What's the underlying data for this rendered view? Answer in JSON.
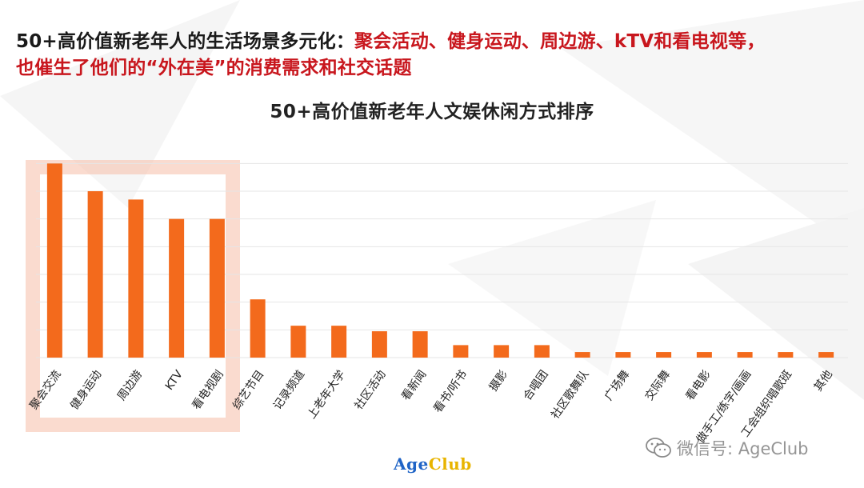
{
  "headline": {
    "prefix": "50+高价值新老年人的生活场景多元化：",
    "highlight_line1": "聚会活动、健身运动、周边游、kTV和看电视等，",
    "line2": "也催生了他们的“外在美”的消费需求和社交话题"
  },
  "colors": {
    "bar": "#f36a1c",
    "highlight": "#c8161d",
    "gridline": "#e6e6e6"
  },
  "chart_data": {
    "type": "bar",
    "title": "50+高价值新老年人文娱休闲方式排序",
    "categories": [
      "聚会交流",
      "健身运动",
      "周边游",
      "KTV",
      "看电视剧",
      "综艺节目",
      "记录频道",
      "上老年大学",
      "社区活动",
      "看新闻",
      "看书/听书",
      "摄影",
      "合唱团",
      "社区歌舞队",
      "广场舞",
      "交际舞",
      "看电影",
      "做手工/练字/画画",
      "工会组织唱歌班",
      "其他"
    ],
    "values": [
      70,
      60,
      57,
      50,
      50,
      21,
      11.5,
      11.5,
      9.5,
      9.5,
      4.5,
      4.5,
      4.5,
      2,
      2,
      2,
      2,
      2,
      2,
      2
    ],
    "ylim": [
      0,
      75
    ],
    "grid": true,
    "highlighted_categories": [
      "聚会交流",
      "健身运动",
      "周边游",
      "KTV",
      "看电视剧"
    ]
  },
  "logo": {
    "age": "Age",
    "club": "Club"
  },
  "watermark": {
    "text": "微信号: AgeClub",
    "icon": "wechat-icon"
  }
}
